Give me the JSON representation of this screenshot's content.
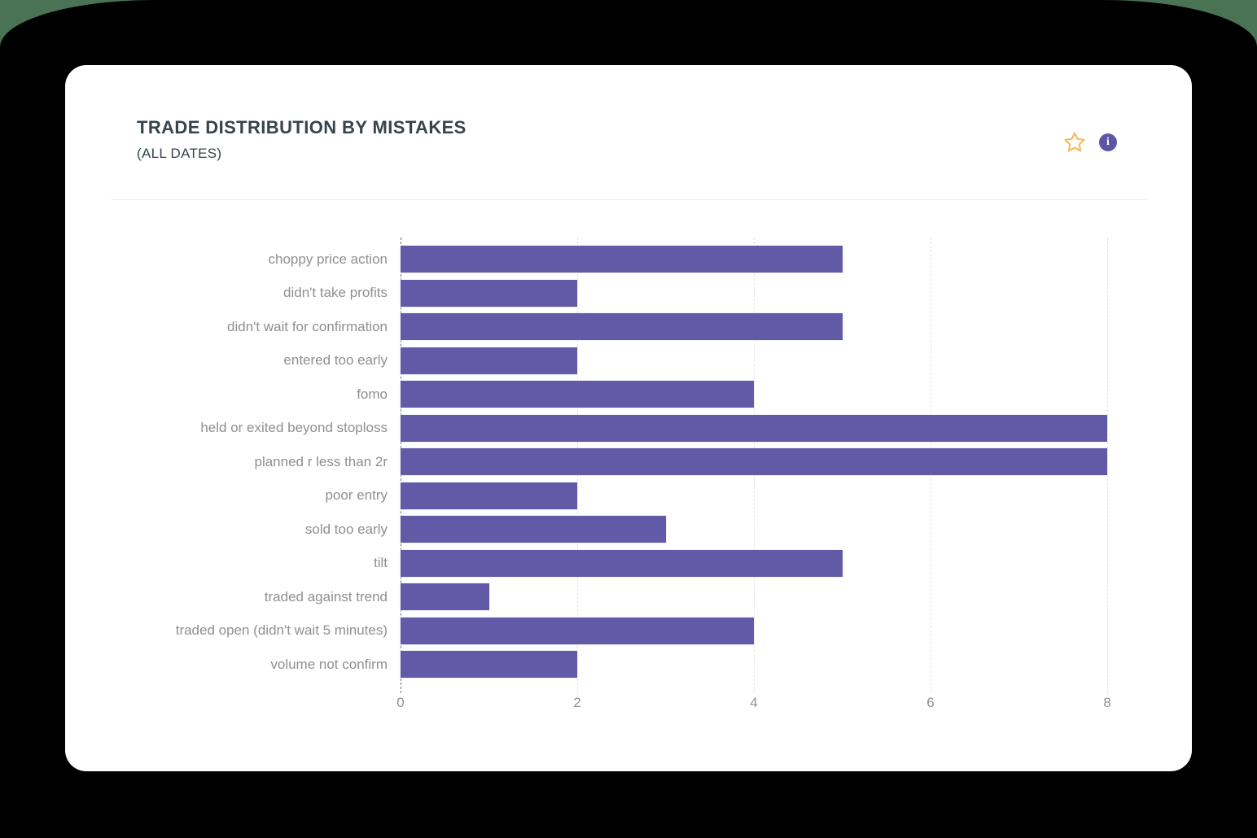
{
  "window": {
    "page_background": "#4a7356",
    "backdrop_color": "#000000",
    "card_background": "#ffffff"
  },
  "header": {
    "title": "TRADE DISTRIBUTION BY MISTAKES",
    "subtitle": "(ALL DATES)",
    "icons": {
      "favorite": "star-icon",
      "info": "info-icon"
    },
    "star_color": "#f2bb60",
    "info_color": "#5d56a6"
  },
  "chart_data": {
    "type": "bar",
    "orientation": "horizontal",
    "title": "TRADE DISTRIBUTION BY MISTAKES",
    "subtitle": "(ALL DATES)",
    "categories": [
      "choppy price action",
      "didn't take profits",
      "didn't wait for confirmation",
      "entered too early",
      "fomo",
      "held or exited beyond stoploss",
      "planned r less than 2r",
      "poor entry",
      "sold too early",
      "tilt",
      "traded against trend",
      "traded open (didn't wait 5 minutes)",
      "volume not confirm"
    ],
    "values": [
      5,
      2,
      5,
      2,
      4,
      8,
      8,
      2,
      3,
      5,
      1,
      4,
      2
    ],
    "xlabel": "",
    "ylabel": "",
    "xlim": [
      0,
      8
    ],
    "x_ticks": [
      0,
      2,
      4,
      6,
      8
    ],
    "bar_color": "#625aa7",
    "grid": "dashed vertical gridlines at ticks",
    "axis_line_color": "#5b7787",
    "gridline_color": "#e2e2e2",
    "tick_label_color": "#8b9299",
    "category_label_color": "#8f8f8f",
    "legend": "none"
  }
}
